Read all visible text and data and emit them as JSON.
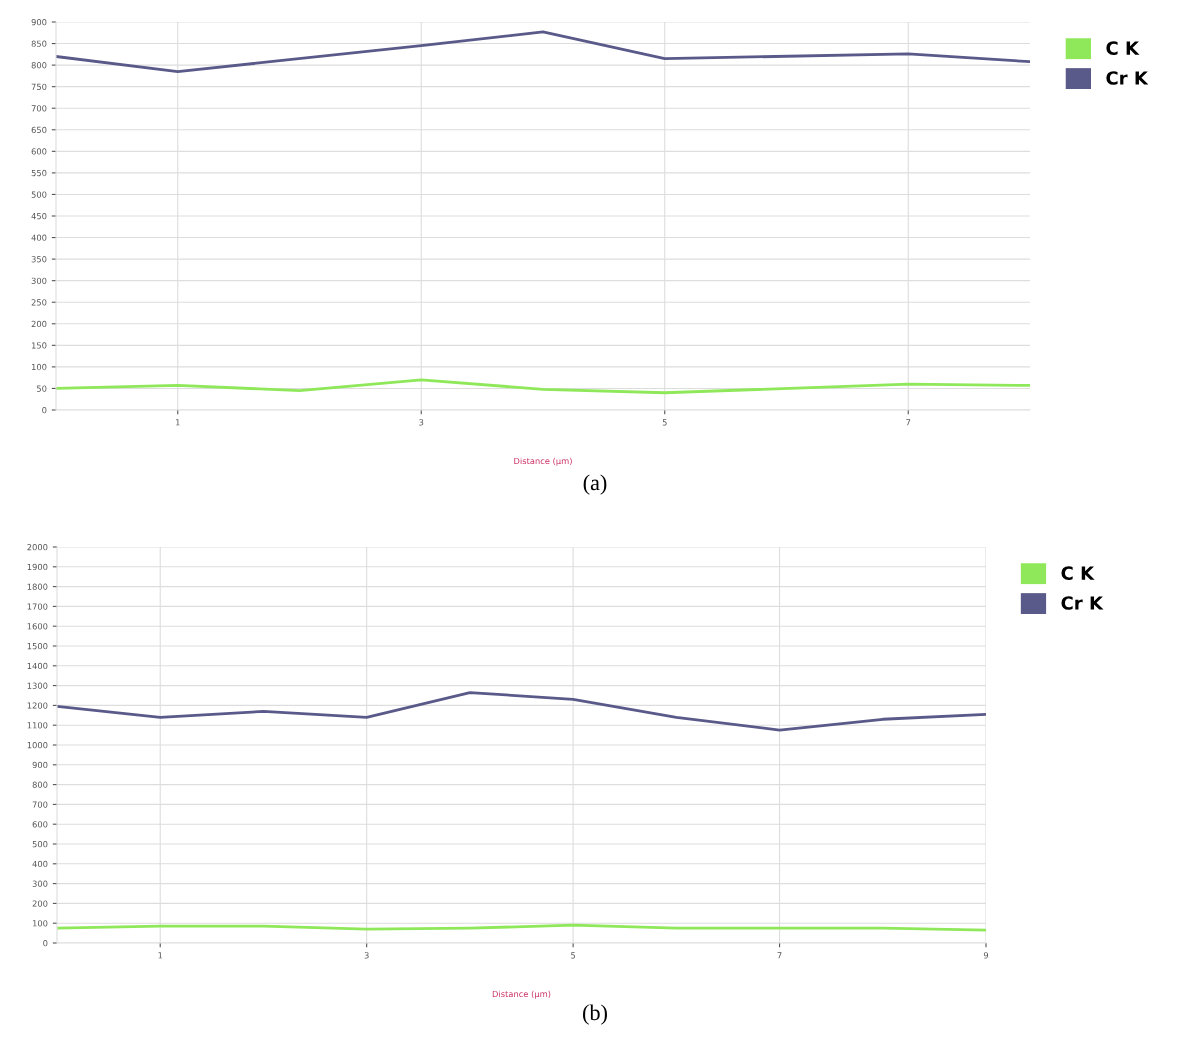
{
  "chart_data": [
    {
      "type": "line",
      "xlabel": "Distance (µm)",
      "annotations": [
        "(a)"
      ],
      "xlim": [
        0,
        8
      ],
      "xticks": [
        1,
        3,
        5,
        7
      ],
      "ylim": [
        0,
        900
      ],
      "yticks": [
        0,
        50,
        100,
        150,
        200,
        250,
        300,
        350,
        400,
        450,
        500,
        550,
        600,
        650,
        700,
        750,
        800,
        850,
        900
      ],
      "grid": true,
      "legend": "top right",
      "marker": "none",
      "line_style": "solid",
      "series": [
        {
          "name": "C K",
          "color": "#8fe85a",
          "x": [
            0,
            1,
            2,
            3,
            4,
            5,
            7,
            8
          ],
          "values": [
            50,
            57,
            45,
            70,
            48,
            40,
            60,
            57
          ]
        },
        {
          "name": "Cr K",
          "color": "#5a5a8a",
          "x": [
            0,
            1,
            3,
            4,
            5,
            7,
            8
          ],
          "values": [
            820,
            785,
            845,
            877,
            815,
            826,
            808
          ]
        }
      ]
    },
    {
      "type": "line",
      "xlabel": "Distance (µm)",
      "annotations": [
        "(b)"
      ],
      "xlim": [
        0,
        9
      ],
      "xticks": [
        1,
        3,
        5,
        7,
        9
      ],
      "ylim": [
        0,
        2000
      ],
      "yticks": [
        0,
        100,
        200,
        300,
        400,
        500,
        600,
        700,
        800,
        900,
        1000,
        1100,
        1200,
        1300,
        1400,
        1500,
        1600,
        1700,
        1800,
        1900,
        2000
      ],
      "grid": true,
      "legend": "top right",
      "marker": "none",
      "line_style": "solid",
      "series": [
        {
          "name": "C K",
          "color": "#8fe85a",
          "x": [
            0,
            1,
            2,
            3,
            4,
            5,
            6,
            7,
            8,
            9
          ],
          "values": [
            75,
            85,
            85,
            70,
            75,
            90,
            75,
            75,
            75,
            65
          ]
        },
        {
          "name": "Cr K",
          "color": "#5a5a8a",
          "x": [
            0,
            1,
            2,
            3,
            4,
            5,
            6,
            7,
            8,
            9
          ],
          "values": [
            1195,
            1140,
            1170,
            1140,
            1265,
            1230,
            1140,
            1075,
            1130,
            1155
          ]
        }
      ]
    }
  ]
}
